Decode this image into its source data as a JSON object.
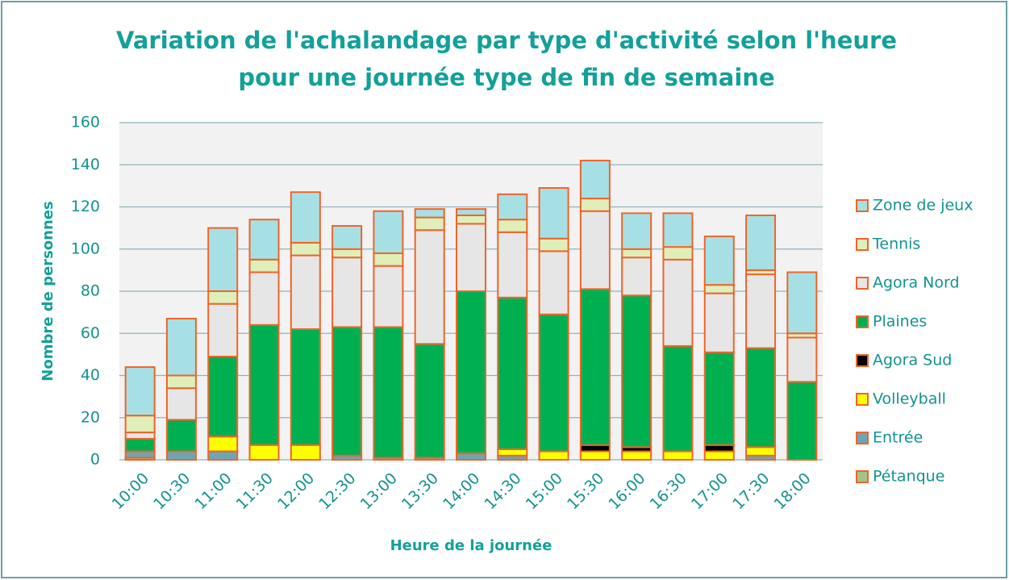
{
  "chart_data": {
    "type": "stacked-bar",
    "title": [
      "Variation de l'achalandage par type d'activité selon l'heure",
      "pour une journée type de fin de semaine"
    ],
    "x_label": "Heure de la journée",
    "y_label": "Nombre de personnes",
    "categories": [
      "10:00",
      "10:30",
      "11:00",
      "11:30",
      "12:00",
      "12:30",
      "13:00",
      "13:30",
      "14:00",
      "14:30",
      "15:00",
      "15:30",
      "16:00",
      "16:30",
      "17:00",
      "17:30",
      "18:00"
    ],
    "series": [
      {
        "name": "Pétanque",
        "color": "#a3c486",
        "values": [
          1,
          0,
          0,
          0,
          0,
          0,
          0,
          0,
          0,
          0,
          0,
          0,
          0,
          0,
          0,
          0,
          0
        ]
      },
      {
        "name": "Entrée",
        "color": "#6ea5b4",
        "values": [
          3,
          4,
          4,
          0,
          0,
          2,
          1,
          1,
          3,
          2,
          0,
          0,
          0,
          0,
          0,
          2,
          0
        ]
      },
      {
        "name": "Volleyball",
        "color": "#ffff00",
        "values": [
          0,
          0,
          7,
          7,
          7,
          0,
          0,
          0,
          0,
          3,
          4,
          4,
          4,
          4,
          4,
          4,
          0
        ]
      },
      {
        "name": "Agora Sud",
        "color": "#000000",
        "values": [
          0,
          0,
          0,
          0,
          0,
          0,
          0,
          0,
          0,
          0,
          0,
          3,
          2,
          0,
          3,
          0,
          0
        ]
      },
      {
        "name": "Plaines",
        "color": "#00b050",
        "values": [
          6,
          15,
          38,
          57,
          55,
          61,
          62,
          54,
          77,
          72,
          65,
          74,
          72,
          50,
          44,
          47,
          37
        ]
      },
      {
        "name": "Agora Nord",
        "color": "#e6e6e6",
        "values": [
          3,
          15,
          25,
          25,
          35,
          33,
          29,
          54,
          32,
          31,
          30,
          37,
          18,
          41,
          28,
          35,
          21
        ]
      },
      {
        "name": "Tennis",
        "color": "#e0eeb9",
        "values": [
          8,
          6,
          6,
          6,
          6,
          4,
          6,
          6,
          4,
          6,
          6,
          6,
          4,
          6,
          4,
          2,
          2
        ]
      },
      {
        "name": "Zone de jeux",
        "color": "#a7e0e4",
        "values": [
          23,
          27,
          30,
          19,
          24,
          11,
          20,
          4,
          3,
          12,
          24,
          18,
          17,
          16,
          23,
          26,
          29
        ]
      }
    ],
    "ylim": [
      0,
      160
    ],
    "yticks": [
      0,
      20,
      40,
      60,
      80,
      100,
      120,
      140,
      160
    ],
    "grid": true,
    "legend": "right"
  }
}
